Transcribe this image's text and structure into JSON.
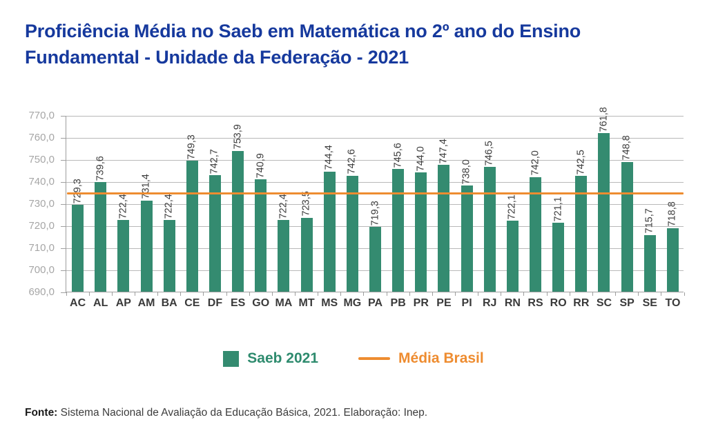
{
  "page": {
    "title_line1": "Proficiência Média no Saeb em Matemática no 2º ano do Ensino",
    "title_line2": "Fundamental - Unidade da Federação - 2021"
  },
  "legend": {
    "series_label": "Saeb 2021",
    "reference_label": "Média Brasil"
  },
  "footer": {
    "source_label": "Fonte:",
    "source_text": "Sistema Nacional de Avaliação da Educação Básica, 2021. Elaboração: Inep."
  },
  "colors": {
    "title_text": "#16399d",
    "bar": "#348b70",
    "reference_line": "#ee8c30",
    "legend_series_text": "#2e8b6e",
    "legend_reference_text": "#ee8c30",
    "axis_tick_text": "#a6a6a6",
    "value_label_text": "#3d3d3d",
    "category_label_text": "#3a3a3a",
    "gridline": "#b8b8b8"
  },
  "chart_data": {
    "type": "bar",
    "title": "Proficiência Média no Saeb em Matemática no 2º ano do Ensino Fundamental - Unidade da Federação - 2021",
    "xlabel": "",
    "ylabel": "",
    "ylim": [
      690,
      770
    ],
    "yticks": [
      690,
      700,
      710,
      720,
      730,
      740,
      750,
      760,
      770
    ],
    "ytick_labels": [
      "690,0",
      "700,0",
      "710,0",
      "720,0",
      "730,0",
      "740,0",
      "750,0",
      "760,0",
      "770,0"
    ],
    "grid": true,
    "legend_position": "bottom",
    "categories": [
      "AC",
      "AL",
      "AP",
      "AM",
      "BA",
      "CE",
      "DF",
      "ES",
      "GO",
      "MA",
      "MT",
      "MS",
      "MG",
      "PA",
      "PB",
      "PR",
      "PE",
      "PI",
      "RJ",
      "RN",
      "RS",
      "RO",
      "RR",
      "SC",
      "SP",
      "SE",
      "TO"
    ],
    "series": [
      {
        "name": "Saeb 2021",
        "values": [
          729.3,
          739.6,
          722.4,
          731.4,
          722.4,
          749.3,
          742.7,
          753.9,
          740.9,
          722.4,
          723.5,
          744.4,
          742.6,
          719.3,
          745.6,
          744.0,
          747.4,
          738.0,
          746.5,
          722.1,
          742.0,
          721.1,
          742.5,
          761.8,
          748.8,
          715.7,
          718.8
        ],
        "value_labels": [
          "729,3",
          "739,6",
          "722,4",
          "731,4",
          "722,4",
          "749,3",
          "742,7",
          "753,9",
          "740,9",
          "722,4",
          "723,5",
          "744,4",
          "742,6",
          "719,3",
          "745,6",
          "744,0",
          "747,4",
          "738,0",
          "746,5",
          "722,1",
          "742,0",
          "721,1",
          "742,5",
          "761,8",
          "748,8",
          "715,7",
          "718,8"
        ]
      }
    ],
    "reference_line": {
      "name": "Média Brasil",
      "value": 735
    }
  }
}
